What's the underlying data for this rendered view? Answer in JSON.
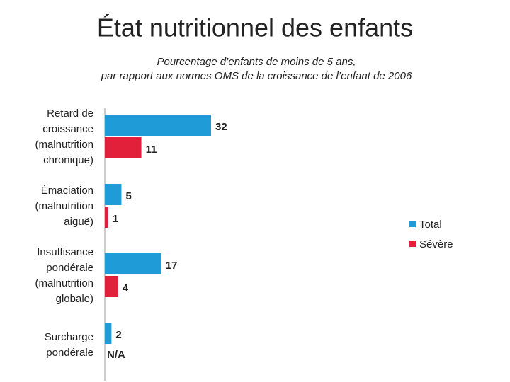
{
  "chart_data": {
    "type": "bar",
    "orientation": "horizontal",
    "title": "État nutritionnel des enfants",
    "subtitle": [
      "Pourcentage d’enfants de moins de 5 ans,",
      "par rapport aux normes OMS de la croissance de l’enfant de 2006"
    ],
    "categories": [
      "Retard de croissance (malnutrition chronique)",
      "Émaciation (malnutrition aiguë)",
      "Insuffisance pondérale (malnutrition globale)",
      "Surcharge pondérale"
    ],
    "series": [
      {
        "name": "Total",
        "color": "#1f9bd7",
        "values": [
          32,
          5,
          17,
          2
        ]
      },
      {
        "name": "Sévère",
        "color": "#e3203a",
        "values": [
          11,
          1,
          4,
          null
        ],
        "value_labels": [
          "11",
          "1",
          "4",
          "N/A"
        ]
      }
    ],
    "legend": "right"
  }
}
